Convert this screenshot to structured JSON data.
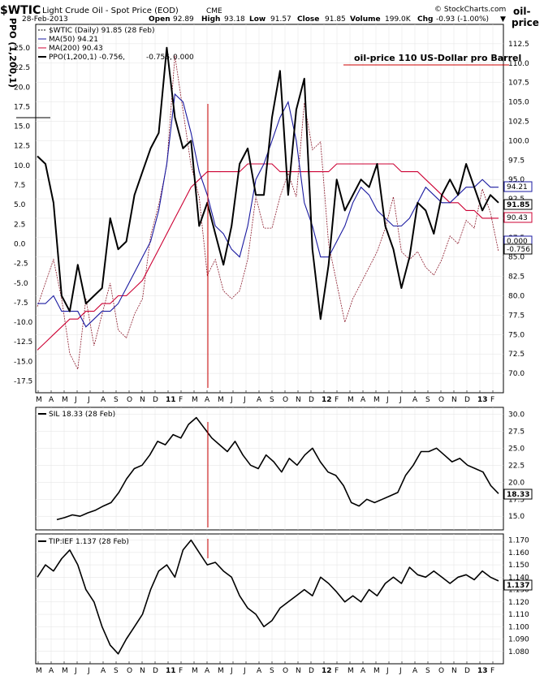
{
  "header": {
    "symbol": "$WTIC",
    "title": "Light Crude Oil - Spot Price (EOD)",
    "exchange": "CME",
    "date": "28-Feb-2013",
    "open_label": "Open",
    "open": "92.89",
    "high_label": "High",
    "high": "93.18",
    "low_label": "Low",
    "low": "91.57",
    "close_label": "Close",
    "close": "91.85",
    "volume_label": "Volume",
    "volume": "199.0K",
    "chg_label": "Chg",
    "chg": "-0.93 (-1.00%)",
    "chg_arrow": "▼",
    "brand": "© StockCharts.com",
    "left_axis_title": "PPO (1,200,1)",
    "right_axis_title_1": "oil-",
    "right_axis_title_2": "price"
  },
  "legend_main": {
    "wtic": "$WTIC (Daily) 91.85 (28 Feb)",
    "ma50": "MA(50) 94.21",
    "ma200": "MA(200) 90.43",
    "ppo_prefix": "PPO(1,200,1) -0.756,",
    "ppo_sig": "-0.756,",
    "ppo_hist": "0.000"
  },
  "annotation": "oil-price 110 US-Dollar pro Barrel",
  "price_tags": {
    "ma50": "94.21",
    "close": "91.85",
    "ma200": "90.43",
    "zero": "0.000",
    "ppo": "-0.756"
  },
  "legend_sil": "SIL 18.33 (28 Feb)",
  "legend_tip": "TIP:IEF 1.137 (28 Feb)",
  "sil_tag": "18.33",
  "tip_tag": "1.137",
  "colors": {
    "price": "#000000",
    "ma50": "#1a1aa0",
    "ma200": "#cc0033",
    "ppo": "#8b1a2b",
    "vline": "#cc0000",
    "tag_blue": "#1a1aa0",
    "tag_red": "#cc0033"
  },
  "chart_data": [
    {
      "type": "line",
      "title": "$WTIC Light Crude Oil - Spot Price (EOD)",
      "ylabel": "oil-price",
      "ylim": [
        67.5,
        115
      ],
      "y_ticks": [
        70,
        72.5,
        75,
        77.5,
        80,
        82.5,
        85,
        87.5,
        90,
        92.5,
        95,
        97.5,
        100,
        102.5,
        105,
        107.5,
        110,
        112.5
      ],
      "ppo_ylim": [
        -19,
        28
      ],
      "ppo_ticks": [
        -17.5,
        -15,
        -12.5,
        -10,
        -7.5,
        -5,
        -2.5,
        0,
        2.5,
        5,
        7.5,
        10,
        12.5,
        15,
        17.5,
        20,
        22.5,
        25
      ],
      "x_ticks": [
        "M",
        "A",
        "M",
        "J",
        "J",
        "A",
        "S",
        "O",
        "N",
        "D",
        "11",
        "F",
        "M",
        "A",
        "M",
        "J",
        "J",
        "A",
        "S",
        "O",
        "N",
        "D",
        "12",
        "F",
        "M",
        "A",
        "M",
        "J",
        "J",
        "A",
        "S",
        "O",
        "N",
        "D",
        "13",
        "F"
      ],
      "annotation_level": 110,
      "series": [
        {
          "name": "$WTIC",
          "values": [
            98,
            97,
            92,
            80,
            78,
            84,
            79,
            80,
            81,
            90,
            86,
            87,
            93,
            96,
            99,
            101,
            112,
            103,
            99,
            100,
            89,
            92,
            88,
            84,
            89,
            97,
            99,
            93,
            93,
            103,
            109,
            93,
            104,
            108,
            86,
            77,
            84,
            95,
            91,
            93,
            95,
            94,
            97,
            89,
            86,
            81,
            85,
            92,
            91,
            88,
            93,
            95,
            93,
            97,
            94,
            91,
            93,
            92
          ]
        },
        {
          "name": "MA(50)",
          "values": [
            79,
            79,
            80,
            78,
            78,
            78,
            76,
            77,
            78,
            78,
            79,
            81,
            83,
            85,
            87,
            91,
            97,
            106,
            105,
            101,
            96,
            93,
            89,
            88,
            86,
            85,
            89,
            95,
            97,
            100,
            103,
            105,
            100,
            92,
            89,
            85,
            85,
            87,
            89,
            92,
            94,
            93,
            91,
            90,
            89,
            89,
            90,
            92,
            94,
            93,
            92,
            92,
            93,
            94,
            94,
            95,
            94,
            94
          ]
        },
        {
          "name": "MA(200)",
          "values": [
            73,
            74,
            75,
            76,
            77,
            77,
            78,
            78,
            79,
            79,
            80,
            80,
            81,
            82,
            84,
            86,
            88,
            90,
            92,
            94,
            95,
            96,
            96,
            96,
            96,
            96,
            97,
            97,
            97,
            97,
            96,
            96,
            96,
            96,
            96,
            96,
            96,
            97,
            97,
            97,
            97,
            97,
            97,
            97,
            97,
            96,
            96,
            96,
            95,
            94,
            93,
            92,
            92,
            91,
            91,
            90,
            90,
            90
          ]
        },
        {
          "name": "PPO(1,200,1)",
          "values": [
            -8,
            -5,
            -2,
            -7,
            -14,
            -16,
            -7,
            -13,
            -9,
            -5,
            -11,
            -12,
            -9,
            -7,
            1,
            5,
            10,
            24,
            17,
            10,
            6,
            -4,
            -2,
            -6,
            -7,
            -6,
            -2,
            6,
            2,
            2,
            6,
            9,
            6,
            18,
            12,
            13,
            0,
            -5,
            -10,
            -7,
            -5,
            -3,
            -1,
            2,
            6,
            -1,
            -2,
            -1,
            -3,
            -4,
            -2,
            1,
            0,
            3,
            2,
            7,
            4,
            -1
          ]
        }
      ]
    },
    {
      "type": "line",
      "title": "SIL",
      "ylim": [
        13,
        31
      ],
      "y_ticks": [
        15,
        17.5,
        20,
        22.5,
        25,
        27.5,
        30
      ],
      "series": [
        {
          "name": "SIL",
          "values": [
            14.5,
            14.8,
            15.2,
            15.0,
            15.5,
            15.9,
            16.5,
            17.0,
            18.5,
            20.5,
            22.0,
            22.5,
            24.0,
            26.0,
            25.5,
            27.0,
            26.5,
            28.5,
            29.5,
            28.0,
            26.5,
            25.5,
            24.5,
            26.0,
            24.0,
            22.5,
            22.0,
            24.0,
            23.0,
            21.5,
            23.5,
            22.5,
            24.0,
            25.0,
            23.0,
            21.5,
            21.0,
            19.5,
            17.0,
            16.5,
            17.5,
            17.0,
            17.5,
            18.0,
            18.5,
            21.0,
            22.5,
            24.5,
            24.5,
            25.0,
            24.0,
            23.0,
            23.5,
            22.5,
            22.0,
            21.5,
            19.5,
            18.33
          ]
        }
      ]
    },
    {
      "type": "line",
      "title": "TIP:IEF",
      "ylim": [
        1.07,
        1.175
      ],
      "y_ticks": [
        1.08,
        1.09,
        1.1,
        1.11,
        1.12,
        1.13,
        1.14,
        1.15,
        1.16,
        1.17
      ],
      "series": [
        {
          "name": "TIP:IEF",
          "values": [
            1.14,
            1.15,
            1.145,
            1.155,
            1.162,
            1.15,
            1.13,
            1.12,
            1.1,
            1.085,
            1.078,
            1.09,
            1.1,
            1.11,
            1.13,
            1.145,
            1.15,
            1.14,
            1.162,
            1.17,
            1.16,
            1.15,
            1.152,
            1.145,
            1.14,
            1.125,
            1.115,
            1.11,
            1.1,
            1.105,
            1.115,
            1.12,
            1.125,
            1.13,
            1.125,
            1.14,
            1.135,
            1.128,
            1.12,
            1.125,
            1.12,
            1.13,
            1.125,
            1.135,
            1.14,
            1.135,
            1.148,
            1.142,
            1.14,
            1.145,
            1.14,
            1.135,
            1.14,
            1.142,
            1.138,
            1.145,
            1.14,
            1.137
          ]
        }
      ]
    }
  ]
}
